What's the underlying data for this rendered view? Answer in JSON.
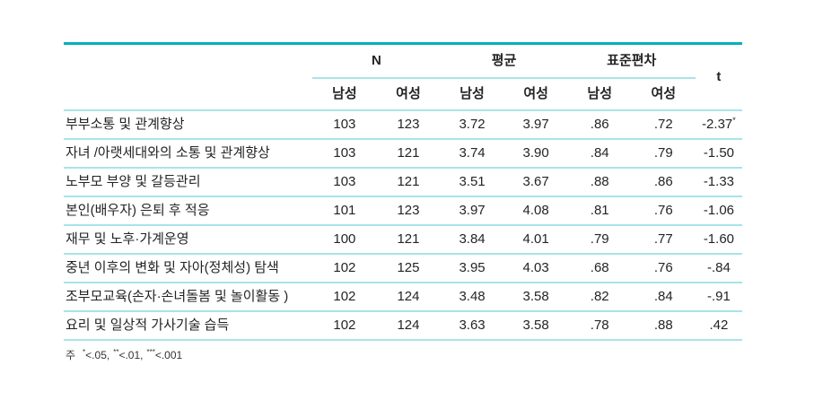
{
  "colors": {
    "accent": "#00b0bc",
    "grid": "#a9e3e8",
    "text": "#242424"
  },
  "table": {
    "col_groups": [
      {
        "label": "N"
      },
      {
        "label": "평균"
      },
      {
        "label": "표준편차"
      }
    ],
    "t_label": "t",
    "sub_headers": [
      "남성",
      "여성",
      "남성",
      "여성",
      "남성",
      "여성"
    ],
    "rows": [
      {
        "label": "부부소통 및 관계향상",
        "values": [
          "103",
          "123",
          "3.72",
          "3.97",
          ".86",
          ".72"
        ],
        "t": "-2.37",
        "t_stars": "*"
      },
      {
        "label": "자녀 /아랫세대와의 소통 및 관계향상",
        "values": [
          "103",
          "121",
          "3.74",
          "3.90",
          ".84",
          ".79"
        ],
        "t": "-1.50",
        "t_stars": ""
      },
      {
        "label": "노부모 부양 및 갈등관리",
        "values": [
          "103",
          "121",
          "3.51",
          "3.67",
          ".88",
          ".86"
        ],
        "t": "-1.33",
        "t_stars": ""
      },
      {
        "label": "본인(배우자) 은퇴 후 적응",
        "values": [
          "101",
          "123",
          "3.97",
          "4.08",
          ".81",
          ".76"
        ],
        "t": "-1.06",
        "t_stars": ""
      },
      {
        "label": "재무 및 노후·가계운영",
        "values": [
          "100",
          "121",
          "3.84",
          "4.01",
          ".79",
          ".77"
        ],
        "t": "-1.60",
        "t_stars": ""
      },
      {
        "label": "중년 이후의 변화 및 자아(정체성) 탐색",
        "values": [
          "102",
          "125",
          "3.95",
          "4.03",
          ".68",
          ".76"
        ],
        "t": "-.84",
        "t_stars": ""
      },
      {
        "label": "조부모교육(손자·손녀돌봄 및 놀이활동 )",
        "values": [
          "102",
          "124",
          "3.48",
          "3.58",
          ".82",
          ".84"
        ],
        "t": "-.91",
        "t_stars": ""
      },
      {
        "label": "요리 및 일상적 가사기술 습득",
        "values": [
          "102",
          "124",
          "3.63",
          "3.58",
          ".78",
          ".88"
        ],
        "t": ".42",
        "t_stars": ""
      }
    ],
    "footnote": {
      "label": "주",
      "items": [
        {
          "stars": "*",
          "text": "<.05,"
        },
        {
          "stars": "**",
          "text": "<.01,"
        },
        {
          "stars": "***",
          "text": "<.001"
        }
      ]
    }
  }
}
